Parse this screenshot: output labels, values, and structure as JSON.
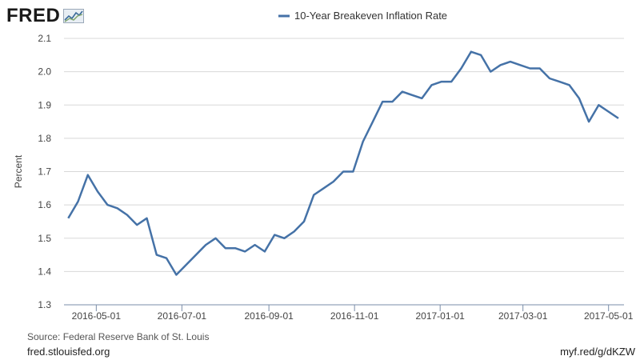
{
  "logo": {
    "text": "FRED",
    "icon": "fred-chart-icon"
  },
  "footer": {
    "source": "Source: Federal Reserve Bank of St. Louis",
    "site": "fred.stlouisfed.org",
    "short_link": "myf.red/g/dKZW"
  },
  "colors": {
    "line": "#4572a7",
    "grid": "#d8d8d8",
    "axis": "#7a8da8",
    "text": "#444444"
  },
  "chart_data": {
    "type": "line",
    "title": "",
    "xlabel": "",
    "ylabel": "Percent",
    "ylim": [
      1.3,
      2.1
    ],
    "yticks": [
      "1.3",
      "1.4",
      "1.5",
      "1.6",
      "1.7",
      "1.8",
      "1.9",
      "2.0",
      "2.1"
    ],
    "xlim": [
      "2016-04-08",
      "2017-05-12"
    ],
    "xticks": [
      "2016-05-01",
      "2016-07-01",
      "2016-09-01",
      "2016-11-01",
      "2017-01-01",
      "2017-03-01",
      "2017-05-01"
    ],
    "grid": "horizontal",
    "legend": "top-center",
    "series": [
      {
        "name": "10-Year Breakeven Inflation Rate",
        "color": "#4572a7",
        "points": [
          [
            "2016-04-11",
            1.56
          ],
          [
            "2016-04-18",
            1.61
          ],
          [
            "2016-04-25",
            1.69
          ],
          [
            "2016-05-02",
            1.64
          ],
          [
            "2016-05-09",
            1.6
          ],
          [
            "2016-05-16",
            1.59
          ],
          [
            "2016-05-23",
            1.57
          ],
          [
            "2016-05-30",
            1.54
          ],
          [
            "2016-06-06",
            1.56
          ],
          [
            "2016-06-13",
            1.45
          ],
          [
            "2016-06-20",
            1.44
          ],
          [
            "2016-06-27",
            1.39
          ],
          [
            "2016-07-04",
            1.42
          ],
          [
            "2016-07-11",
            1.45
          ],
          [
            "2016-07-18",
            1.48
          ],
          [
            "2016-07-25",
            1.5
          ],
          [
            "2016-08-01",
            1.47
          ],
          [
            "2016-08-08",
            1.47
          ],
          [
            "2016-08-15",
            1.46
          ],
          [
            "2016-08-22",
            1.48
          ],
          [
            "2016-08-29",
            1.46
          ],
          [
            "2016-09-05",
            1.51
          ],
          [
            "2016-09-12",
            1.5
          ],
          [
            "2016-09-19",
            1.52
          ],
          [
            "2016-09-26",
            1.55
          ],
          [
            "2016-10-03",
            1.63
          ],
          [
            "2016-10-10",
            1.65
          ],
          [
            "2016-10-17",
            1.67
          ],
          [
            "2016-10-24",
            1.7
          ],
          [
            "2016-10-31",
            1.7
          ],
          [
            "2016-11-07",
            1.79
          ],
          [
            "2016-11-14",
            1.85
          ],
          [
            "2016-11-21",
            1.91
          ],
          [
            "2016-11-28",
            1.91
          ],
          [
            "2016-12-05",
            1.94
          ],
          [
            "2016-12-12",
            1.93
          ],
          [
            "2016-12-19",
            1.92
          ],
          [
            "2016-12-26",
            1.96
          ],
          [
            "2017-01-02",
            1.97
          ],
          [
            "2017-01-09",
            1.97
          ],
          [
            "2017-01-16",
            2.01
          ],
          [
            "2017-01-23",
            2.06
          ],
          [
            "2017-01-30",
            2.05
          ],
          [
            "2017-02-06",
            2.0
          ],
          [
            "2017-02-13",
            2.02
          ],
          [
            "2017-02-20",
            2.03
          ],
          [
            "2017-02-27",
            2.02
          ],
          [
            "2017-03-06",
            2.01
          ],
          [
            "2017-03-13",
            2.01
          ],
          [
            "2017-03-20",
            1.98
          ],
          [
            "2017-03-27",
            1.97
          ],
          [
            "2017-04-03",
            1.96
          ],
          [
            "2017-04-10",
            1.92
          ],
          [
            "2017-04-17",
            1.85
          ],
          [
            "2017-04-24",
            1.9
          ],
          [
            "2017-05-01",
            1.88
          ],
          [
            "2017-05-08",
            1.86
          ]
        ]
      }
    ]
  }
}
